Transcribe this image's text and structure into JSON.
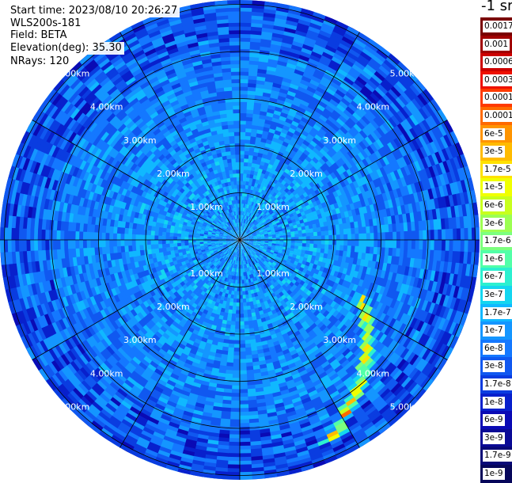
{
  "info": {
    "start_time": "Start time: 2023/08/10 20:26:27",
    "instrument": "WLS200s-181",
    "field": "Field: BETA",
    "elevation": "Elevation(deg): 35.30",
    "nrays": "NRays: 120"
  },
  "colorbar": {
    "unit_label": "-1 sr",
    "labels": [
      "0.0017",
      "0.001",
      "0.0006",
      "0.0003",
      "0.00017",
      "0.0001",
      "6e-5",
      "3e-5",
      "1.7e-5",
      "1e-5",
      "6e-6",
      "3e-6",
      "1.7e-6",
      "1e-6",
      "6e-7",
      "3e-7",
      "1.7e-7",
      "1e-7",
      "6e-8",
      "3e-8",
      "1.7e-8",
      "1e-8",
      "6e-9",
      "3e-9",
      "1.7e-9",
      "1e-9"
    ],
    "colors": [
      "#7a0000",
      "#a00000",
      "#cc0000",
      "#ee1100",
      "#ff3a00",
      "#ff6a00",
      "#ff9400",
      "#ffbb00",
      "#ffe100",
      "#f0ff00",
      "#c8ff1e",
      "#9cff52",
      "#7cff7e",
      "#52ffa8",
      "#2cf0d0",
      "#14d6f0",
      "#10b8ff",
      "#1496ff",
      "#1478ff",
      "#1058f0",
      "#0a3ce0",
      "#0820cc",
      "#0a0ab4",
      "#0a0a96",
      "#080878",
      "#06065a"
    ]
  },
  "chart_data": {
    "type": "heatmap",
    "projection": "polar",
    "range_rings_km": [
      1,
      2,
      3,
      4,
      5
    ],
    "ring_labels": [
      "1.00km",
      "2.00km",
      "3.00km",
      "4.00km",
      "5.00km"
    ],
    "spokes_deg": [
      0,
      30,
      60,
      90,
      120,
      150
    ],
    "nrays": 120,
    "max_range_km": 5.3,
    "color_scale": "log",
    "value_range": [
      1e-09,
      0.0017
    ],
    "typical_beta_by_range": [
      {
        "range_km": 0.5,
        "beta": 1e-07
      },
      {
        "range_km": 1.5,
        "beta": 1e-07
      },
      {
        "range_km": 2.5,
        "beta": 8e-08
      },
      {
        "range_km": 3.5,
        "beta": 6e-08
      },
      {
        "range_km": 4.5,
        "beta": 5e-08
      },
      {
        "range_km": 5.2,
        "beta": 3e-08
      }
    ],
    "features": [
      {
        "description": "enhanced echo band",
        "range_km": [
          2.8,
          4.8
        ],
        "azimuth_deg": [
          115,
          160
        ],
        "beta_max": 0.0001
      },
      {
        "description": "low echo ring",
        "range_km": [
          4.0,
          5.2
        ],
        "azimuth_deg": [
          0,
          360
        ],
        "beta": 1e-08
      }
    ]
  }
}
